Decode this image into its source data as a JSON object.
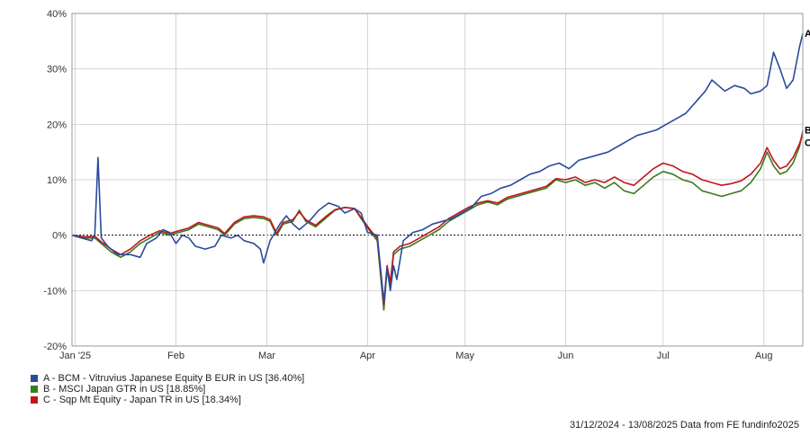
{
  "chart_data": {
    "type": "line",
    "ylim": [
      -20,
      40
    ],
    "y_ticks": [
      -20,
      -10,
      0,
      10,
      20,
      30,
      40
    ],
    "y_tick_labels": [
      "-20%",
      "-10%",
      "0%",
      "10%",
      "20%",
      "30%",
      "40%"
    ],
    "x_range": [
      "2024-12-31",
      "2025-08-13"
    ],
    "x_ticks": [
      {
        "date": "2025-01-01",
        "label": "Jan '25"
      },
      {
        "date": "2025-02-01",
        "label": "Feb"
      },
      {
        "date": "2025-03-01",
        "label": "Mar"
      },
      {
        "date": "2025-04-01",
        "label": "Apr"
      },
      {
        "date": "2025-05-01",
        "label": "May"
      },
      {
        "date": "2025-06-01",
        "label": "Jun"
      },
      {
        "date": "2025-07-01",
        "label": "Jul"
      },
      {
        "date": "2025-08-01",
        "label": "Aug"
      }
    ],
    "grid": true,
    "zero_line": true,
    "series": [
      {
        "name": "A - BCM - Vitruvius Japanese Equity B EUR in US [36.40%]",
        "end_label": "A",
        "color": "#2a4b9b",
        "points": [
          [
            "2024-12-31",
            0
          ],
          [
            "2025-01-03",
            -0.5
          ],
          [
            "2025-01-06",
            -1
          ],
          [
            "2025-01-07",
            0
          ],
          [
            "2025-01-08",
            14
          ],
          [
            "2025-01-09",
            -0.5
          ],
          [
            "2025-01-11",
            -2
          ],
          [
            "2025-01-14",
            -3.5
          ],
          [
            "2025-01-18",
            -3.5
          ],
          [
            "2025-01-21",
            -4
          ],
          [
            "2025-01-23",
            -1.5
          ],
          [
            "2025-01-26",
            -0.5
          ],
          [
            "2025-01-28",
            1
          ],
          [
            "2025-01-30",
            0.5
          ],
          [
            "2025-02-01",
            -1.5
          ],
          [
            "2025-02-03",
            0
          ],
          [
            "2025-02-05",
            -0.5
          ],
          [
            "2025-02-07",
            -2
          ],
          [
            "2025-02-10",
            -2.5
          ],
          [
            "2025-02-13",
            -2
          ],
          [
            "2025-02-15",
            0
          ],
          [
            "2025-02-18",
            -0.5
          ],
          [
            "2025-02-20",
            0
          ],
          [
            "2025-02-22",
            -1
          ],
          [
            "2025-02-25",
            -1.5
          ],
          [
            "2025-02-27",
            -2.5
          ],
          [
            "2025-02-28",
            -5
          ],
          [
            "2025-03-02",
            -1
          ],
          [
            "2025-03-05",
            2
          ],
          [
            "2025-03-07",
            3.5
          ],
          [
            "2025-03-09",
            2
          ],
          [
            "2025-03-11",
            1
          ],
          [
            "2025-03-14",
            2.5
          ],
          [
            "2025-03-17",
            4.5
          ],
          [
            "2025-03-20",
            5.8
          ],
          [
            "2025-03-23",
            5.2
          ],
          [
            "2025-03-25",
            4
          ],
          [
            "2025-03-28",
            4.8
          ],
          [
            "2025-03-30",
            4
          ],
          [
            "2025-04-01",
            0.5
          ],
          [
            "2025-04-04",
            0
          ],
          [
            "2025-04-06",
            -12
          ],
          [
            "2025-04-07",
            -6
          ],
          [
            "2025-04-08",
            -10
          ],
          [
            "2025-04-09",
            -5.5
          ],
          [
            "2025-04-10",
            -8
          ],
          [
            "2025-04-12",
            -1
          ],
          [
            "2025-04-15",
            0.5
          ],
          [
            "2025-04-18",
            1
          ],
          [
            "2025-04-21",
            2
          ],
          [
            "2025-04-24",
            2.5
          ],
          [
            "2025-04-27",
            3
          ],
          [
            "2025-04-30",
            4
          ],
          [
            "2025-05-03",
            5
          ],
          [
            "2025-05-06",
            7
          ],
          [
            "2025-05-09",
            7.5
          ],
          [
            "2025-05-12",
            8.5
          ],
          [
            "2025-05-15",
            9
          ],
          [
            "2025-05-18",
            10
          ],
          [
            "2025-05-21",
            11
          ],
          [
            "2025-05-24",
            11.5
          ],
          [
            "2025-05-27",
            12.5
          ],
          [
            "2025-05-30",
            13
          ],
          [
            "2025-06-02",
            12
          ],
          [
            "2025-06-05",
            13.5
          ],
          [
            "2025-06-08",
            14
          ],
          [
            "2025-06-11",
            14.5
          ],
          [
            "2025-06-14",
            15
          ],
          [
            "2025-06-17",
            16
          ],
          [
            "2025-06-20",
            17
          ],
          [
            "2025-06-23",
            18
          ],
          [
            "2025-06-26",
            18.5
          ],
          [
            "2025-06-29",
            19
          ],
          [
            "2025-07-02",
            20
          ],
          [
            "2025-07-05",
            21
          ],
          [
            "2025-07-08",
            22
          ],
          [
            "2025-07-11",
            24
          ],
          [
            "2025-07-14",
            26
          ],
          [
            "2025-07-16",
            28
          ],
          [
            "2025-07-18",
            27
          ],
          [
            "2025-07-20",
            26
          ],
          [
            "2025-07-23",
            27
          ],
          [
            "2025-07-26",
            26.5
          ],
          [
            "2025-07-28",
            25.5
          ],
          [
            "2025-07-31",
            26
          ],
          [
            "2025-08-02",
            27
          ],
          [
            "2025-08-04",
            33
          ],
          [
            "2025-08-06",
            30
          ],
          [
            "2025-08-08",
            26.5
          ],
          [
            "2025-08-10",
            28
          ],
          [
            "2025-08-11",
            31
          ],
          [
            "2025-08-12",
            34
          ],
          [
            "2025-08-13",
            36.4
          ]
        ]
      },
      {
        "name": "B - MSCI Japan GTR in US [18.85%]",
        "end_label": "B",
        "color": "#3b7a1e",
        "points": [
          [
            "2024-12-31",
            0
          ],
          [
            "2025-01-04",
            -0.5
          ],
          [
            "2025-01-07",
            -0.5
          ],
          [
            "2025-01-09",
            -1.5
          ],
          [
            "2025-01-12",
            -3
          ],
          [
            "2025-01-15",
            -4
          ],
          [
            "2025-01-18",
            -3
          ],
          [
            "2025-01-21",
            -1.5
          ],
          [
            "2025-01-24",
            -0.5
          ],
          [
            "2025-01-27",
            0.5
          ],
          [
            "2025-01-30",
            0
          ],
          [
            "2025-02-02",
            0.5
          ],
          [
            "2025-02-05",
            1
          ],
          [
            "2025-02-08",
            2
          ],
          [
            "2025-02-11",
            1.5
          ],
          [
            "2025-02-14",
            1
          ],
          [
            "2025-02-16",
            0
          ],
          [
            "2025-02-19",
            2
          ],
          [
            "2025-02-22",
            3
          ],
          [
            "2025-02-25",
            3.2
          ],
          [
            "2025-02-28",
            3
          ],
          [
            "2025-03-02",
            2.5
          ],
          [
            "2025-03-04",
            0
          ],
          [
            "2025-03-06",
            2
          ],
          [
            "2025-03-09",
            2.5
          ],
          [
            "2025-03-11",
            4.5
          ],
          [
            "2025-03-13",
            2.5
          ],
          [
            "2025-03-16",
            1.5
          ],
          [
            "2025-03-19",
            3
          ],
          [
            "2025-03-22",
            4.5
          ],
          [
            "2025-03-25",
            5
          ],
          [
            "2025-03-28",
            4.8
          ],
          [
            "2025-03-30",
            3
          ],
          [
            "2025-04-02",
            0.5
          ],
          [
            "2025-04-04",
            -1
          ],
          [
            "2025-04-06",
            -13.5
          ],
          [
            "2025-04-07",
            -6
          ],
          [
            "2025-04-08",
            -9
          ],
          [
            "2025-04-09",
            -3.5
          ],
          [
            "2025-04-11",
            -2.5
          ],
          [
            "2025-04-14",
            -2
          ],
          [
            "2025-04-17",
            -1
          ],
          [
            "2025-04-20",
            0
          ],
          [
            "2025-04-23",
            1
          ],
          [
            "2025-04-26",
            2.5
          ],
          [
            "2025-04-29",
            3.5
          ],
          [
            "2025-05-02",
            4.5
          ],
          [
            "2025-05-05",
            5.5
          ],
          [
            "2025-05-08",
            6
          ],
          [
            "2025-05-11",
            5.5
          ],
          [
            "2025-05-14",
            6.5
          ],
          [
            "2025-05-17",
            7
          ],
          [
            "2025-05-20",
            7.5
          ],
          [
            "2025-05-23",
            8
          ],
          [
            "2025-05-26",
            8.5
          ],
          [
            "2025-05-29",
            10
          ],
          [
            "2025-06-01",
            9.5
          ],
          [
            "2025-06-04",
            10
          ],
          [
            "2025-06-07",
            9
          ],
          [
            "2025-06-10",
            9.5
          ],
          [
            "2025-06-13",
            8.5
          ],
          [
            "2025-06-16",
            9.5
          ],
          [
            "2025-06-19",
            8
          ],
          [
            "2025-06-22",
            7.5
          ],
          [
            "2025-06-25",
            9
          ],
          [
            "2025-06-28",
            10.5
          ],
          [
            "2025-07-01",
            11.5
          ],
          [
            "2025-07-04",
            11
          ],
          [
            "2025-07-07",
            10
          ],
          [
            "2025-07-10",
            9.5
          ],
          [
            "2025-07-13",
            8
          ],
          [
            "2025-07-16",
            7.5
          ],
          [
            "2025-07-19",
            7
          ],
          [
            "2025-07-22",
            7.5
          ],
          [
            "2025-07-25",
            8
          ],
          [
            "2025-07-28",
            9.5
          ],
          [
            "2025-07-31",
            12
          ],
          [
            "2025-08-02",
            15
          ],
          [
            "2025-08-04",
            12.5
          ],
          [
            "2025-08-06",
            11
          ],
          [
            "2025-08-08",
            11.5
          ],
          [
            "2025-08-10",
            13
          ],
          [
            "2025-08-12",
            16
          ],
          [
            "2025-08-13",
            18.85
          ]
        ]
      },
      {
        "name": "C - Sqp Mt Equity - Japan TR in US [18.34%]",
        "end_label": "C",
        "color": "#c0161c",
        "points": [
          [
            "2024-12-31",
            0
          ],
          [
            "2025-01-04",
            -0.3
          ],
          [
            "2025-01-07",
            -0.2
          ],
          [
            "2025-01-09",
            -1.2
          ],
          [
            "2025-01-12",
            -2.5
          ],
          [
            "2025-01-15",
            -3.5
          ],
          [
            "2025-01-18",
            -2.5
          ],
          [
            "2025-01-21",
            -1
          ],
          [
            "2025-01-24",
            0
          ],
          [
            "2025-01-27",
            0.8
          ],
          [
            "2025-01-30",
            0.3
          ],
          [
            "2025-02-02",
            0.8
          ],
          [
            "2025-02-05",
            1.3
          ],
          [
            "2025-02-08",
            2.3
          ],
          [
            "2025-02-11",
            1.8
          ],
          [
            "2025-02-14",
            1.3
          ],
          [
            "2025-02-16",
            0.3
          ],
          [
            "2025-02-19",
            2.3
          ],
          [
            "2025-02-22",
            3.3
          ],
          [
            "2025-02-25",
            3.5
          ],
          [
            "2025-02-28",
            3.3
          ],
          [
            "2025-03-02",
            2.8
          ],
          [
            "2025-03-04",
            0.3
          ],
          [
            "2025-03-06",
            2.3
          ],
          [
            "2025-03-09",
            2.8
          ],
          [
            "2025-03-11",
            4.2
          ],
          [
            "2025-03-13",
            2.8
          ],
          [
            "2025-03-16",
            1.8
          ],
          [
            "2025-03-19",
            3.3
          ],
          [
            "2025-03-22",
            4.6
          ],
          [
            "2025-03-25",
            5
          ],
          [
            "2025-03-28",
            4.8
          ],
          [
            "2025-03-30",
            3.2
          ],
          [
            "2025-04-02",
            0.8
          ],
          [
            "2025-04-04",
            -0.5
          ],
          [
            "2025-04-06",
            -12.5
          ],
          [
            "2025-04-07",
            -5.5
          ],
          [
            "2025-04-08",
            -8.5
          ],
          [
            "2025-04-09",
            -3
          ],
          [
            "2025-04-11",
            -2
          ],
          [
            "2025-04-14",
            -1.5
          ],
          [
            "2025-04-17",
            -0.5
          ],
          [
            "2025-04-20",
            0.5
          ],
          [
            "2025-04-23",
            1.5
          ],
          [
            "2025-04-26",
            3
          ],
          [
            "2025-04-29",
            4
          ],
          [
            "2025-05-02",
            5
          ],
          [
            "2025-05-05",
            5.8
          ],
          [
            "2025-05-08",
            6.2
          ],
          [
            "2025-05-11",
            5.8
          ],
          [
            "2025-05-14",
            6.8
          ],
          [
            "2025-05-17",
            7.3
          ],
          [
            "2025-05-20",
            7.8
          ],
          [
            "2025-05-23",
            8.3
          ],
          [
            "2025-05-26",
            8.8
          ],
          [
            "2025-05-29",
            10.2
          ],
          [
            "2025-06-01",
            10
          ],
          [
            "2025-06-04",
            10.5
          ],
          [
            "2025-06-07",
            9.5
          ],
          [
            "2025-06-10",
            10
          ],
          [
            "2025-06-13",
            9.5
          ],
          [
            "2025-06-16",
            10.5
          ],
          [
            "2025-06-19",
            9.5
          ],
          [
            "2025-06-22",
            9
          ],
          [
            "2025-06-25",
            10.5
          ],
          [
            "2025-06-28",
            12
          ],
          [
            "2025-07-01",
            13
          ],
          [
            "2025-07-04",
            12.5
          ],
          [
            "2025-07-07",
            11.5
          ],
          [
            "2025-07-10",
            11
          ],
          [
            "2025-07-13",
            10
          ],
          [
            "2025-07-16",
            9.5
          ],
          [
            "2025-07-19",
            9
          ],
          [
            "2025-07-22",
            9.3
          ],
          [
            "2025-07-25",
            9.8
          ],
          [
            "2025-07-28",
            11
          ],
          [
            "2025-07-31",
            13
          ],
          [
            "2025-08-02",
            15.8
          ],
          [
            "2025-08-04",
            13.5
          ],
          [
            "2025-08-06",
            12
          ],
          [
            "2025-08-08",
            12.5
          ],
          [
            "2025-08-10",
            14
          ],
          [
            "2025-08-12",
            16.5
          ],
          [
            "2025-08-13",
            18.34
          ]
        ]
      }
    ]
  },
  "footer": {
    "text": "31/12/2024 - 13/08/2025 Data from FE fundinfo2025"
  }
}
